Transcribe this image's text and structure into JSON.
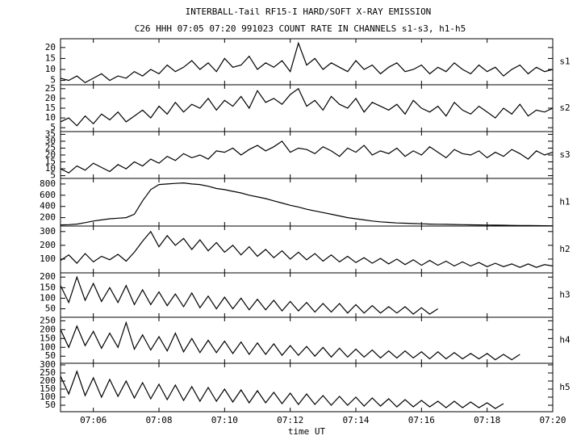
{
  "title": "INTERBALL-Tail RF15-I HARD/SOFT X-RAY EMISSION",
  "subtitle": "C26 HHH 07:05 07:20 991023  COUNT RATE IN CHANNELS s1-s3, h1-h5",
  "chart_data": [
    {
      "type": "line",
      "label": "s1",
      "color": "#000000",
      "xlim": [
        5,
        20
      ],
      "ylim": [
        3,
        24
      ],
      "yticks": [
        5,
        10,
        15,
        20
      ],
      "x": [
        5,
        5.25,
        5.5,
        5.75,
        6,
        6.25,
        6.5,
        6.75,
        7,
        7.25,
        7.5,
        7.75,
        8,
        8.25,
        8.5,
        8.75,
        9,
        9.25,
        9.5,
        9.75,
        10,
        10.25,
        10.5,
        10.75,
        11,
        11.25,
        11.5,
        11.75,
        12,
        12.25,
        12.5,
        12.75,
        13,
        13.25,
        13.5,
        13.75,
        14,
        14.25,
        14.5,
        14.75,
        15,
        15.25,
        15.5,
        15.75,
        16,
        16.25,
        16.5,
        16.75,
        17,
        17.25,
        17.5,
        17.75,
        18,
        18.25,
        18.5,
        18.75,
        19,
        19.25,
        19.5,
        19.75,
        20
      ],
      "values": [
        6,
        5,
        7,
        4,
        6,
        8,
        5,
        7,
        6,
        9,
        7,
        10,
        8,
        12,
        9,
        11,
        14,
        10,
        13,
        9,
        15,
        11,
        12,
        16,
        10,
        13,
        11,
        14,
        9,
        22,
        12,
        15,
        10,
        13,
        11,
        9,
        14,
        10,
        12,
        8,
        11,
        13,
        9,
        10,
        12,
        8,
        11,
        9,
        13,
        10,
        8,
        12,
        9,
        11,
        7,
        10,
        12,
        8,
        11,
        9,
        10
      ]
    },
    {
      "type": "line",
      "label": "s2",
      "color": "#000000",
      "xlim": [
        5,
        20
      ],
      "ylim": [
        3,
        27
      ],
      "yticks": [
        5,
        10,
        15,
        20,
        25
      ],
      "x": [
        5,
        5.25,
        5.5,
        5.75,
        6,
        6.25,
        6.5,
        6.75,
        7,
        7.25,
        7.5,
        7.75,
        8,
        8.25,
        8.5,
        8.75,
        9,
        9.25,
        9.5,
        9.75,
        10,
        10.25,
        10.5,
        10.75,
        11,
        11.25,
        11.5,
        11.75,
        12,
        12.25,
        12.5,
        12.75,
        13,
        13.25,
        13.5,
        13.75,
        14,
        14.25,
        14.5,
        14.75,
        15,
        15.25,
        15.5,
        15.75,
        16,
        16.25,
        16.5,
        16.75,
        17,
        17.25,
        17.5,
        17.75,
        18,
        18.25,
        18.5,
        18.75,
        19,
        19.25,
        19.5,
        19.75,
        20
      ],
      "values": [
        8,
        10,
        6,
        11,
        7,
        12,
        9,
        13,
        8,
        11,
        14,
        10,
        16,
        12,
        18,
        13,
        17,
        15,
        20,
        14,
        19,
        16,
        21,
        15,
        24,
        18,
        20,
        17,
        22,
        25,
        16,
        19,
        14,
        21,
        17,
        15,
        20,
        13,
        18,
        16,
        14,
        17,
        12,
        19,
        15,
        13,
        16,
        11,
        18,
        14,
        12,
        16,
        13,
        10,
        15,
        12,
        17,
        11,
        14,
        13,
        15
      ]
    },
    {
      "type": "line",
      "label": "s3",
      "color": "#000000",
      "xlim": [
        5,
        20
      ],
      "ylim": [
        3,
        37
      ],
      "yticks": [
        5,
        10,
        15,
        20,
        25,
        30,
        35
      ],
      "x": [
        5,
        5.25,
        5.5,
        5.75,
        6,
        6.25,
        6.5,
        6.75,
        7,
        7.25,
        7.5,
        7.75,
        8,
        8.25,
        8.5,
        8.75,
        9,
        9.25,
        9.5,
        9.75,
        10,
        10.25,
        10.5,
        10.75,
        11,
        11.25,
        11.5,
        11.75,
        12,
        12.25,
        12.5,
        12.75,
        13,
        13.25,
        13.5,
        13.75,
        14,
        14.25,
        14.5,
        14.75,
        15,
        15.25,
        15.5,
        15.75,
        16,
        16.25,
        16.5,
        16.75,
        17,
        17.25,
        17.5,
        17.75,
        18,
        18.25,
        18.5,
        18.75,
        19,
        19.25,
        19.5,
        19.75,
        20
      ],
      "values": [
        10,
        7,
        12,
        9,
        14,
        11,
        8,
        13,
        10,
        15,
        12,
        17,
        14,
        19,
        16,
        21,
        18,
        20,
        17,
        23,
        22,
        25,
        20,
        24,
        27,
        23,
        26,
        30,
        22,
        25,
        24,
        21,
        26,
        23,
        19,
        25,
        22,
        27,
        20,
        23,
        21,
        25,
        19,
        23,
        20,
        26,
        22,
        18,
        24,
        21,
        20,
        23,
        18,
        22,
        19,
        24,
        21,
        17,
        23,
        20,
        22
      ]
    },
    {
      "type": "line",
      "label": "h1",
      "color": "#000000",
      "xlim": [
        5,
        20
      ],
      "ylim": [
        50,
        900
      ],
      "yticks": [
        200,
        400,
        600,
        800
      ],
      "x": [
        5,
        5.25,
        5.5,
        5.75,
        6,
        6.25,
        6.5,
        6.75,
        7,
        7.25,
        7.5,
        7.75,
        8,
        8.25,
        8.5,
        8.75,
        9,
        9.25,
        9.5,
        9.75,
        10,
        10.25,
        10.5,
        10.75,
        11,
        11.25,
        11.5,
        11.75,
        12,
        12.25,
        12.5,
        12.75,
        13,
        13.25,
        13.5,
        13.75,
        14,
        14.25,
        14.5,
        14.75,
        15,
        15.25,
        15.5,
        15.75,
        16,
        16.25,
        16.5,
        16.75,
        17,
        17.25,
        17.5,
        17.75,
        18,
        18.25,
        18.5,
        18.75,
        19,
        19.25,
        19.5,
        19.75,
        20
      ],
      "values": [
        70,
        75,
        85,
        110,
        140,
        160,
        180,
        190,
        200,
        260,
        500,
        700,
        790,
        800,
        810,
        820,
        800,
        790,
        760,
        720,
        700,
        670,
        640,
        600,
        570,
        540,
        500,
        460,
        420,
        390,
        350,
        320,
        290,
        260,
        230,
        200,
        180,
        160,
        140,
        125,
        115,
        105,
        100,
        95,
        90,
        85,
        82,
        80,
        78,
        75,
        72,
        70,
        68,
        66,
        64,
        62,
        60,
        58,
        57,
        56,
        55
      ]
    },
    {
      "type": "line",
      "label": "h2",
      "color": "#000000",
      "xlim": [
        5,
        20
      ],
      "ylim": [
        0,
        340
      ],
      "yticks": [
        100,
        200,
        300
      ],
      "x": [
        5,
        5.25,
        5.5,
        5.75,
        6,
        6.25,
        6.5,
        6.75,
        7,
        7.25,
        7.5,
        7.75,
        8,
        8.25,
        8.5,
        8.75,
        9,
        9.25,
        9.5,
        9.75,
        10,
        10.25,
        10.5,
        10.75,
        11,
        11.25,
        11.5,
        11.75,
        12,
        12.25,
        12.5,
        12.75,
        13,
        13.25,
        13.5,
        13.75,
        14,
        14.25,
        14.5,
        14.75,
        15,
        15.25,
        15.5,
        15.75,
        16,
        16.25,
        16.5,
        16.75,
        17,
        17.25,
        17.5,
        17.75,
        18,
        18.25,
        18.5,
        18.75,
        19,
        19.25,
        19.5,
        19.75,
        20
      ],
      "values": [
        90,
        130,
        70,
        140,
        80,
        120,
        95,
        135,
        85,
        150,
        230,
        300,
        190,
        270,
        200,
        250,
        170,
        240,
        160,
        220,
        150,
        200,
        130,
        190,
        120,
        170,
        110,
        160,
        100,
        150,
        95,
        140,
        85,
        130,
        80,
        120,
        75,
        110,
        70,
        105,
        65,
        100,
        60,
        95,
        55,
        90,
        55,
        85,
        50,
        80,
        50,
        75,
        45,
        70,
        45,
        65,
        40,
        65,
        40,
        60,
        50
      ]
    },
    {
      "type": "line",
      "label": "h3",
      "color": "#000000",
      "xlim": [
        5,
        20
      ],
      "ylim": [
        10,
        220
      ],
      "yticks": [
        50,
        100,
        150,
        200
      ],
      "x": [
        5,
        5.25,
        5.5,
        5.75,
        6,
        6.25,
        6.5,
        6.75,
        7,
        7.25,
        7.5,
        7.75,
        8,
        8.25,
        8.5,
        8.75,
        9,
        9.25,
        9.5,
        9.75,
        10,
        10.25,
        10.5,
        10.75,
        11,
        11.25,
        11.5,
        11.75,
        12,
        12.25,
        12.5,
        12.75,
        13,
        13.25,
        13.5,
        13.75,
        14,
        14.25,
        14.5,
        14.75,
        15,
        15.25,
        15.5,
        15.75,
        16,
        16.25,
        16.5,
        16.75,
        17,
        17.25,
        17.5,
        17.75,
        18,
        18.25,
        18.5,
        18.75,
        19,
        19.25,
        19.5,
        19.75,
        20
      ],
      "values": [
        160,
        80,
        200,
        90,
        170,
        85,
        150,
        80,
        160,
        70,
        140,
        70,
        130,
        65,
        120,
        60,
        125,
        55,
        110,
        50,
        105,
        50,
        100,
        45,
        95,
        45,
        90,
        40,
        85,
        40,
        80,
        35,
        75,
        35,
        75,
        30,
        70,
        30,
        65,
        30,
        60,
        30,
        60,
        25,
        55,
        25,
        50,
        null,
        null,
        null,
        null,
        null,
        null,
        null,
        null,
        null,
        null,
        null,
        null,
        null,
        null
      ]
    },
    {
      "type": "line",
      "label": "h4",
      "color": "#000000",
      "xlim": [
        5,
        20
      ],
      "ylim": [
        10,
        270
      ],
      "yticks": [
        50,
        100,
        150,
        200,
        250
      ],
      "x": [
        5,
        5.25,
        5.5,
        5.75,
        6,
        6.25,
        6.5,
        6.75,
        7,
        7.25,
        7.5,
        7.75,
        8,
        8.25,
        8.5,
        8.75,
        9,
        9.25,
        9.5,
        9.75,
        10,
        10.25,
        10.5,
        10.75,
        11,
        11.25,
        11.5,
        11.75,
        12,
        12.25,
        12.5,
        12.75,
        13,
        13.25,
        13.5,
        13.75,
        14,
        14.25,
        14.5,
        14.75,
        15,
        15.25,
        15.5,
        15.75,
        16,
        16.25,
        16.5,
        16.75,
        17,
        17.25,
        17.5,
        17.75,
        18,
        18.25,
        18.5,
        18.75,
        19,
        19.25,
        19.5,
        19.75,
        20
      ],
      "values": [
        200,
        100,
        220,
        110,
        190,
        95,
        180,
        100,
        240,
        90,
        170,
        85,
        160,
        80,
        180,
        75,
        150,
        70,
        140,
        70,
        135,
        65,
        130,
        60,
        125,
        60,
        120,
        55,
        110,
        55,
        105,
        50,
        100,
        45,
        95,
        45,
        90,
        45,
        85,
        40,
        80,
        40,
        80,
        40,
        75,
        35,
        75,
        35,
        70,
        35,
        65,
        35,
        65,
        30,
        60,
        30,
        60,
        null,
        null,
        null,
        null
      ]
    },
    {
      "type": "line",
      "label": "h5",
      "color": "#000000",
      "xlim": [
        5,
        20
      ],
      "ylim": [
        10,
        310
      ],
      "yticks": [
        50,
        100,
        150,
        200,
        250,
        300
      ],
      "x": [
        5,
        5.25,
        5.5,
        5.75,
        6,
        6.25,
        6.5,
        6.75,
        7,
        7.25,
        7.5,
        7.75,
        8,
        8.25,
        8.5,
        8.75,
        9,
        9.25,
        9.5,
        9.75,
        10,
        10.25,
        10.5,
        10.75,
        11,
        11.25,
        11.5,
        11.75,
        12,
        12.25,
        12.5,
        12.75,
        13,
        13.25,
        13.5,
        13.75,
        14,
        14.25,
        14.5,
        14.75,
        15,
        15.25,
        15.5,
        15.75,
        16,
        16.25,
        16.5,
        16.75,
        17,
        17.25,
        17.5,
        17.75,
        18,
        18.25,
        18.5,
        18.75,
        19,
        19.25,
        19.5,
        19.75,
        20
      ],
      "values": [
        230,
        120,
        260,
        110,
        220,
        100,
        210,
        105,
        200,
        95,
        190,
        90,
        180,
        85,
        175,
        80,
        165,
        75,
        160,
        75,
        150,
        70,
        145,
        65,
        140,
        65,
        130,
        60,
        125,
        55,
        120,
        55,
        110,
        50,
        105,
        50,
        100,
        45,
        95,
        45,
        90,
        40,
        85,
        40,
        80,
        40,
        75,
        35,
        75,
        35,
        70,
        35,
        65,
        30,
        60,
        null,
        null,
        null,
        null,
        null,
        null
      ],
      "xlabel": "time UT",
      "xticks": [
        {
          "value": 6,
          "label": "07:06"
        },
        {
          "value": 8,
          "label": "07:08"
        },
        {
          "value": 10,
          "label": "07:10"
        },
        {
          "value": 12,
          "label": "07:12"
        },
        {
          "value": 14,
          "label": "07:14"
        },
        {
          "value": 16,
          "label": "07:16"
        },
        {
          "value": 18,
          "label": "07:18"
        },
        {
          "value": 20,
          "label": "07:20"
        }
      ]
    }
  ]
}
